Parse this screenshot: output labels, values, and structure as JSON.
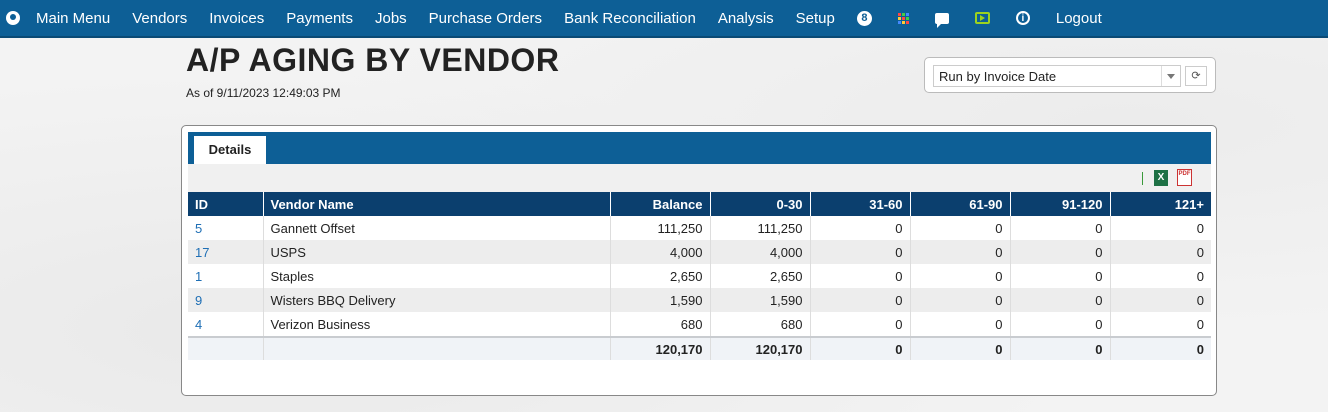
{
  "nav": {
    "items": [
      "Main Menu",
      "Vendors",
      "Invoices",
      "Payments",
      "Jobs",
      "Purchase Orders",
      "Bank Reconciliation",
      "Analysis",
      "Setup"
    ],
    "badge_count": "8",
    "info_symbol": "i",
    "logout": "Logout",
    "colors": {
      "bar": "#0d5f96",
      "tv_icon": "#9bd21f"
    }
  },
  "page": {
    "title": "A/P AGING BY VENDOR",
    "as_of": "As of 9/11/2023 12:49:03 PM"
  },
  "run_by": {
    "selected": "Run by Invoice Date",
    "refresh_symbol": "⟳"
  },
  "tabs": {
    "details": "Details"
  },
  "export": {
    "excel": "X",
    "pdf": "PDF"
  },
  "table": {
    "columns": [
      "ID",
      "Vendor Name",
      "Balance",
      "0-30",
      "31-60",
      "61-90",
      "91-120",
      "121+"
    ],
    "rows": [
      [
        "5",
        "Gannett Offset",
        "111,250",
        "111,250",
        "0",
        "0",
        "0",
        "0"
      ],
      [
        "17",
        "USPS",
        "4,000",
        "4,000",
        "0",
        "0",
        "0",
        "0"
      ],
      [
        "1",
        "Staples",
        "2,650",
        "2,650",
        "0",
        "0",
        "0",
        "0"
      ],
      [
        "9",
        "Wisters BBQ Delivery",
        "1,590",
        "1,590",
        "0",
        "0",
        "0",
        "0"
      ],
      [
        "4",
        "Verizon Business",
        "680",
        "680",
        "0",
        "0",
        "0",
        "0"
      ]
    ],
    "totals": [
      "",
      "",
      "120,170",
      "120,170",
      "0",
      "0",
      "0",
      "0"
    ]
  }
}
